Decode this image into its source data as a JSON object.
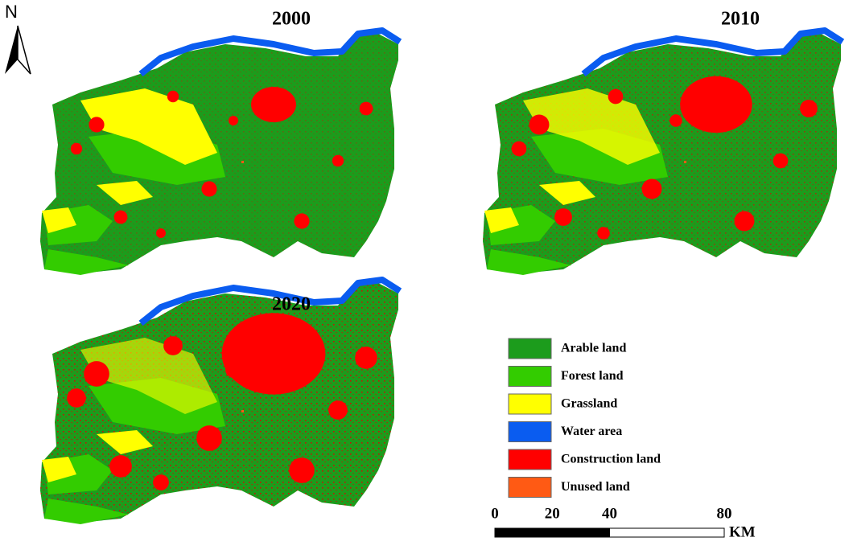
{
  "north": "N",
  "maps": [
    {
      "title": "2000"
    },
    {
      "title": "2010"
    },
    {
      "title": "2020"
    }
  ],
  "legend": {
    "items": [
      {
        "label": "Arable land",
        "color": "#1c9c1c"
      },
      {
        "label": "Forest land",
        "color": "#33cc00"
      },
      {
        "label": "Grassland",
        "color": "#ffff00"
      },
      {
        "label": "Water area",
        "color": "#0a5cf0"
      },
      {
        "label": "Construction land",
        "color": "#ff0000"
      },
      {
        "label": "Unused land",
        "color": "#ff5a14"
      }
    ]
  },
  "scale_bar": {
    "ticks": [
      0,
      20,
      40,
      80
    ],
    "unit": "KM"
  }
}
